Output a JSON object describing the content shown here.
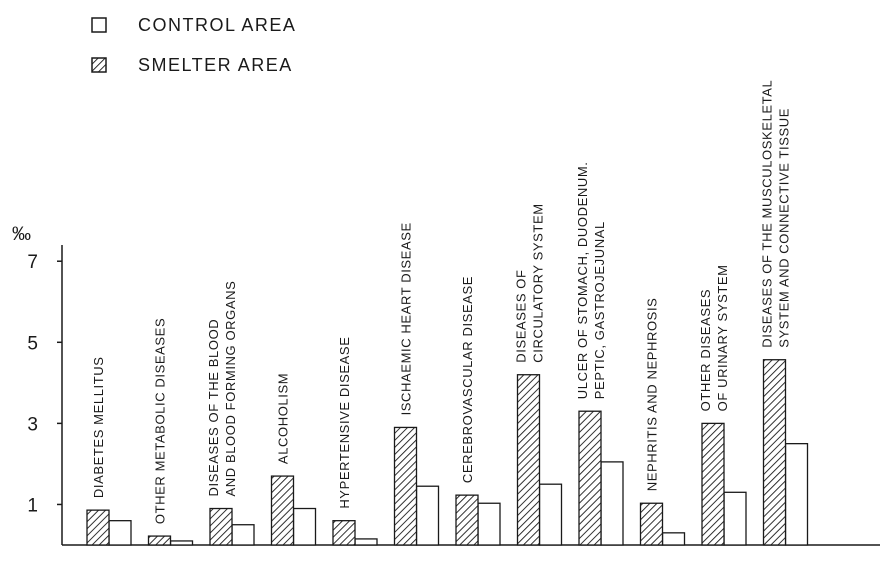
{
  "chart_data": {
    "type": "bar",
    "y_label": "‰",
    "categories": [
      "DIABETES MELLITUS",
      "OTHER METABOLIC DISEASES",
      "DISEASES OF THE BLOOD\nAND BLOOD FORMING ORGANS",
      "ALCOHOLISM",
      "HYPERTENSIVE DISEASE",
      "ISCHAEMIC HEART DISEASE",
      "CEREBROVASCULAR DISEASE",
      "DISEASES OF\nCIRCULATORY SYSTEM",
      "ULCER OF STOMACH, DUODENUM.\nPEPTIC, GASTROJEJUNAL",
      "NEPHRITIS AND NEPHROSIS",
      "OTHER DISEASES\nOF URINARY SYSTEM",
      "DISEASES OF THE MUSCULOSKELETAL\nSYSTEM AND CONNECTIVE TISSUE"
    ],
    "series": [
      {
        "name": "CONTROL AREA",
        "color": "#ffffff",
        "hatch": false,
        "values": [
          0.6,
          0.1,
          0.5,
          0.9,
          0.15,
          1.45,
          1.03,
          1.5,
          2.05,
          0.3,
          1.3,
          2.5
        ]
      },
      {
        "name": "SMELTER AREA",
        "color": "#1a1a1a",
        "hatch": true,
        "values": [
          0.86,
          0.22,
          0.9,
          1.7,
          0.6,
          2.9,
          1.23,
          4.2,
          3.3,
          1.03,
          3.0,
          4.57
        ]
      }
    ],
    "ylim": [
      0,
      7.4
    ],
    "yticks": [
      1,
      3,
      5,
      7
    ],
    "grid": false,
    "legend": "top-left"
  }
}
